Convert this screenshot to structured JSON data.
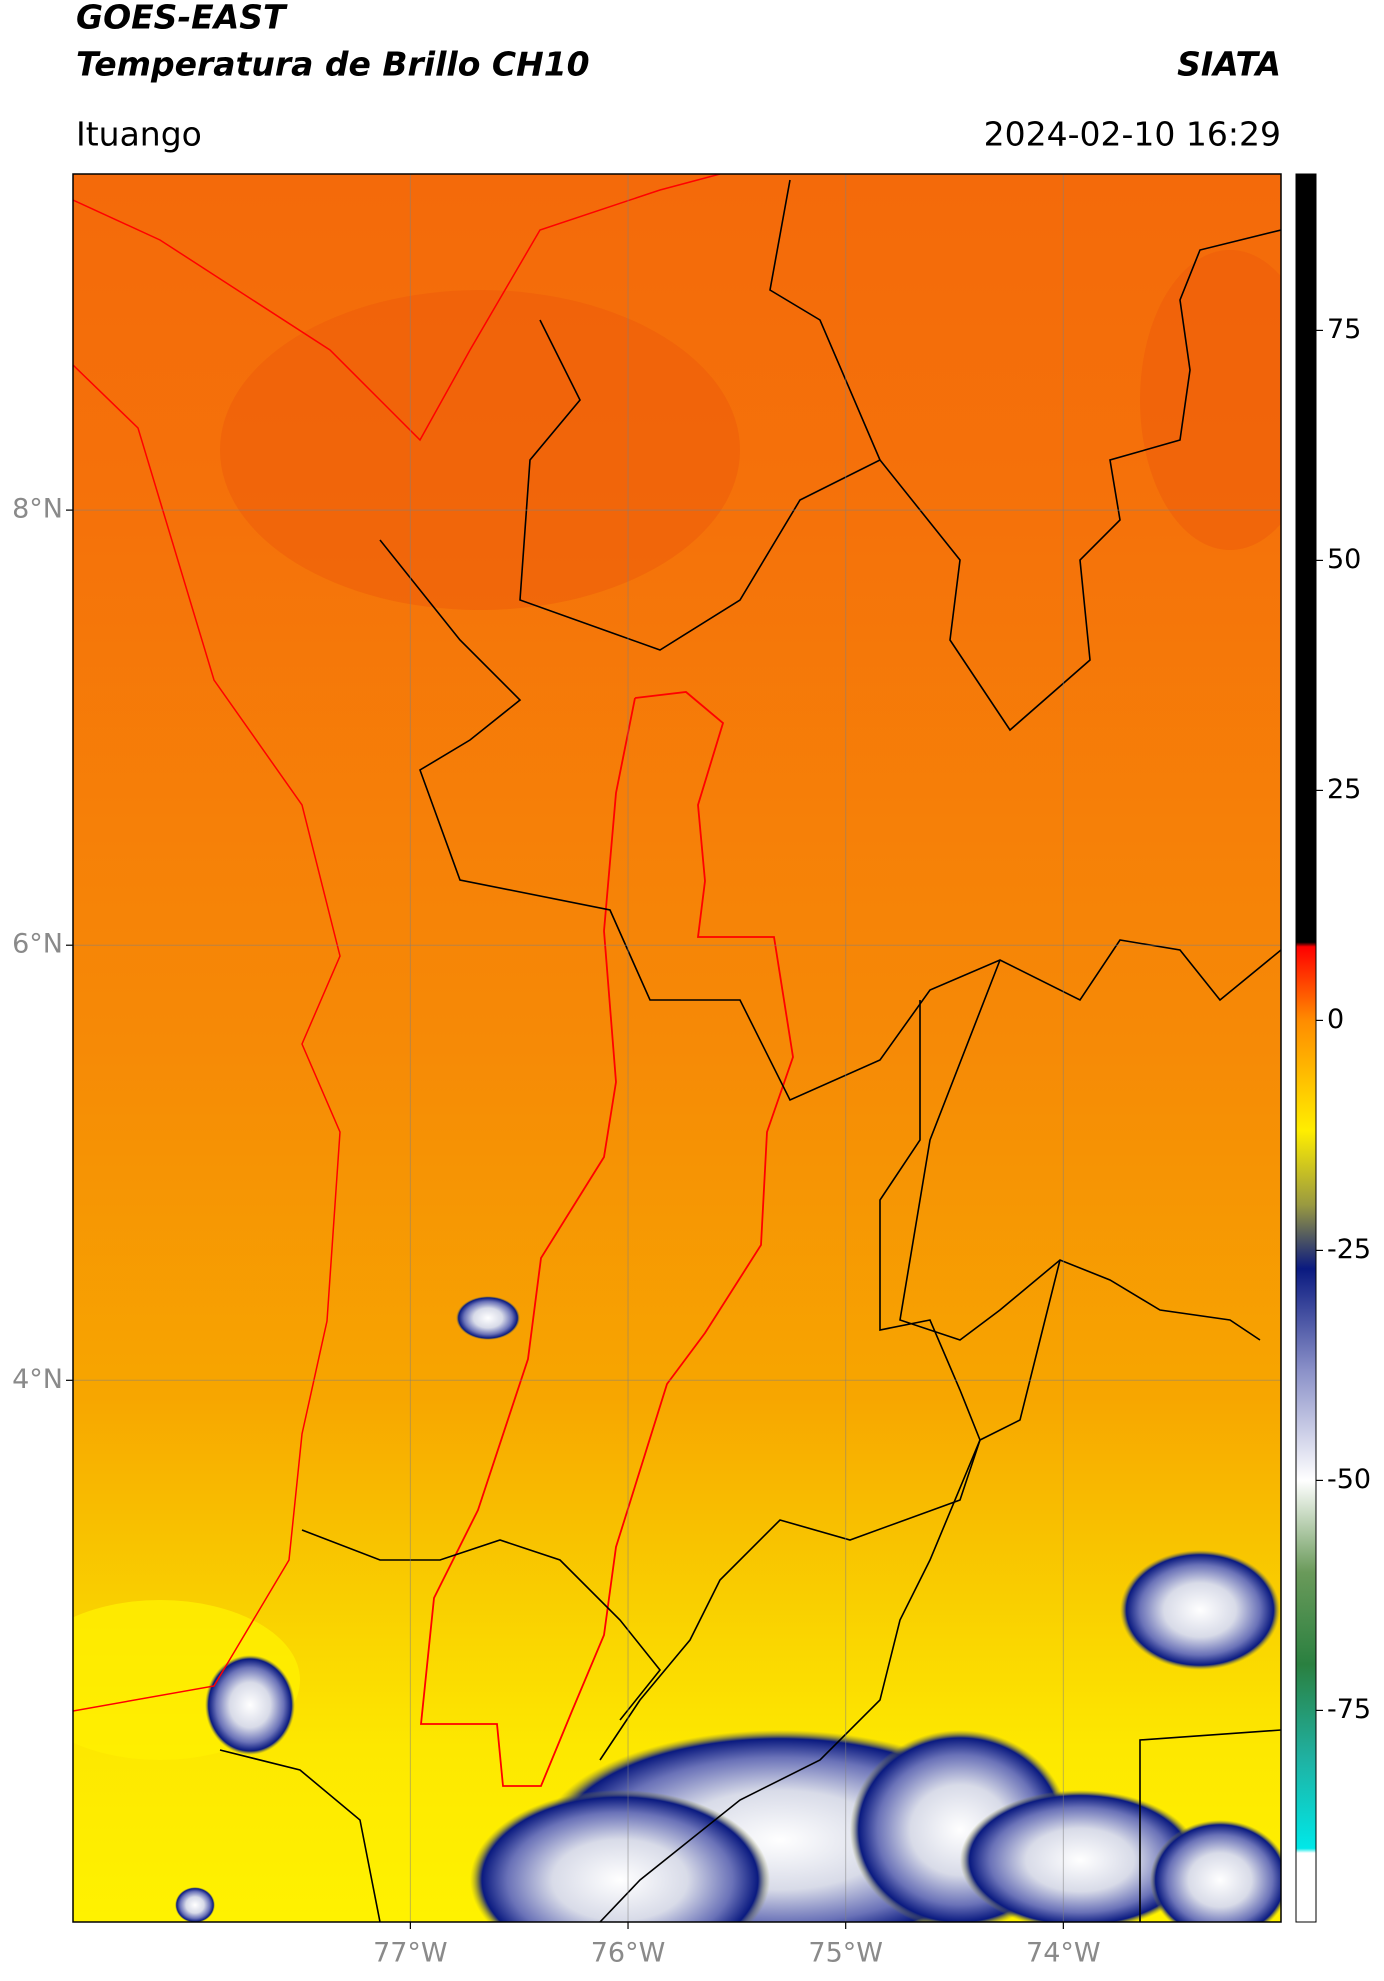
{
  "header": {
    "title": "GOES-EAST",
    "subtitle": "Temperatura de Brillo CH10",
    "source": "SIATA",
    "location": "Ituango",
    "datetime": "2024-02-10 16:29"
  },
  "map": {
    "lon_range": [
      -78.55,
      -73.0
    ],
    "lat_range": [
      1.51,
      9.545
    ],
    "grid": true,
    "lat_ticks": [
      {
        "value": 8,
        "label": "8°N"
      },
      {
        "value": 6,
        "label": "6°N"
      },
      {
        "value": 4,
        "label": "4°N"
      }
    ],
    "lon_ticks": [
      {
        "value": -77,
        "label": "77°W"
      },
      {
        "value": -76,
        "label": "76°W"
      },
      {
        "value": -75,
        "label": "75°W"
      },
      {
        "value": -74,
        "label": "74°W"
      }
    ]
  },
  "colorbar": {
    "range": [
      -98,
      92
    ],
    "ticks": [
      75,
      50,
      25,
      0,
      -25,
      -50,
      -75
    ],
    "stops": [
      {
        "value": 92,
        "color": "#000000"
      },
      {
        "value": 8.5,
        "color": "#000000"
      },
      {
        "value": 8,
        "color": "#ff0000"
      },
      {
        "value": 0,
        "color": "#ff8c00"
      },
      {
        "value": -12,
        "color": "#ffee00"
      },
      {
        "value": -20,
        "color": "#9a9a40"
      },
      {
        "value": -27,
        "color": "#0a1a80"
      },
      {
        "value": -38,
        "color": "#8a90c8"
      },
      {
        "value": -50,
        "color": "#ffffff"
      },
      {
        "value": -60,
        "color": "#6a9a5a"
      },
      {
        "value": -70,
        "color": "#2a8040"
      },
      {
        "value": -80,
        "color": "#20b0a0"
      },
      {
        "value": -90,
        "color": "#00e8e8"
      },
      {
        "value": -90.5,
        "color": "#ffffff"
      },
      {
        "value": -98,
        "color": "#ffffff"
      }
    ]
  }
}
